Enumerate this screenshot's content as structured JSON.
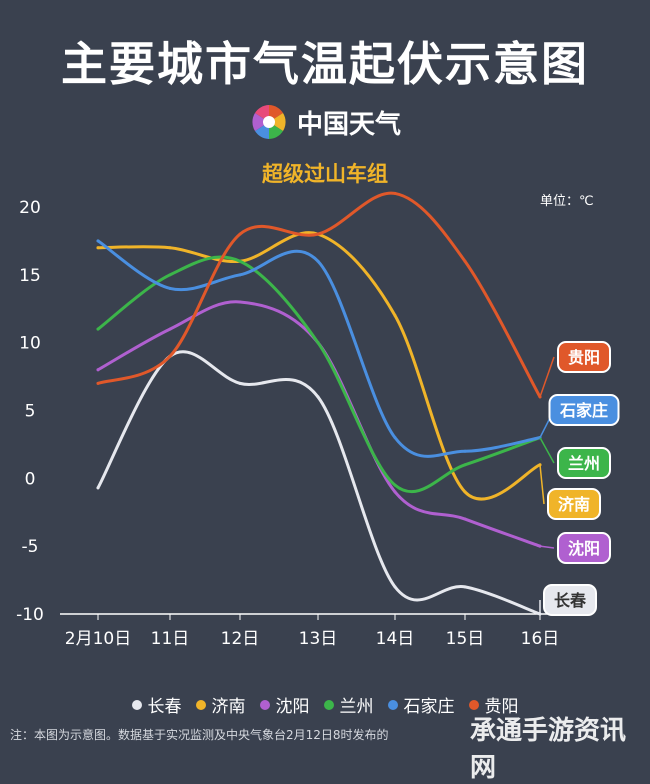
{
  "title": "主要城市气温起伏示意图",
  "brand": {
    "name": "中国天气",
    "logo": "pinwheel-logo"
  },
  "subtitle": "超级过山车组",
  "unit_label": "单位：℃",
  "footnote": "注：本图为示意图。数据基于实况监测及中央气象台2月12日8时发布的",
  "watermark": "承通手游资讯网",
  "chart_data": {
    "type": "line",
    "x": [
      "2月10日",
      "11日",
      "12日",
      "13日",
      "14日",
      "15日",
      "16日"
    ],
    "ylim": [
      -10,
      20
    ],
    "yticks": [
      20,
      15,
      10,
      5,
      0,
      -5,
      -10
    ],
    "grid": false,
    "legend_position": "bottom",
    "series": [
      {
        "name": "长春",
        "color": "#e6e8ee",
        "values": [
          -0.7,
          9,
          7,
          6,
          -8,
          -8,
          -10
        ]
      },
      {
        "name": "济南",
        "color": "#f0b429",
        "values": [
          17,
          17,
          16,
          18,
          12,
          -1,
          1
        ]
      },
      {
        "name": "沈阳",
        "color": "#b060d0",
        "values": [
          8,
          11,
          13,
          10,
          -1,
          -3,
          -5
        ]
      },
      {
        "name": "兰州",
        "color": "#3cb54a",
        "values": [
          11,
          15,
          16,
          10,
          -0.5,
          1,
          3
        ]
      },
      {
        "name": "石家庄",
        "color": "#4a8fe0",
        "values": [
          17.5,
          14,
          15,
          16,
          3,
          2,
          3
        ]
      },
      {
        "name": "贵阳",
        "color": "#e0582a",
        "values": [
          7,
          9,
          18,
          18,
          21,
          16,
          6
        ]
      }
    ]
  }
}
